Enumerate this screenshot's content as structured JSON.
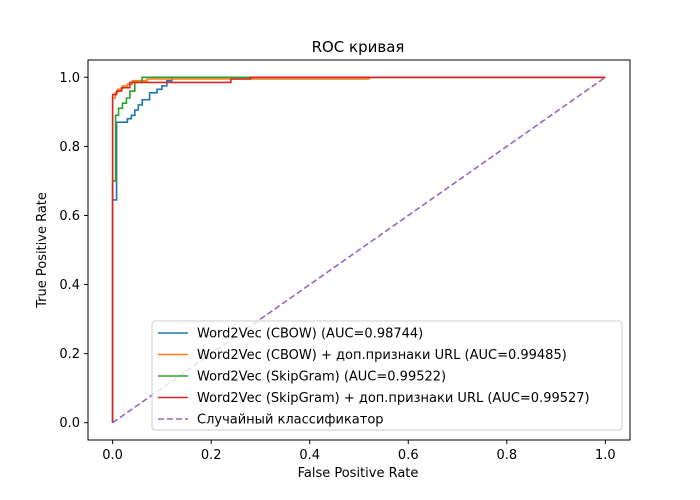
{
  "chart_data": {
    "type": "line",
    "title": "ROC кривая",
    "xlabel": "False Positive Rate",
    "ylabel": "True Positive Rate",
    "xlim": [
      -0.05,
      1.05
    ],
    "ylim": [
      -0.05,
      1.05
    ],
    "xticks": [
      0.0,
      0.2,
      0.4,
      0.6,
      0.8,
      1.0
    ],
    "yticks": [
      0.0,
      0.2,
      0.4,
      0.6,
      0.8,
      1.0
    ],
    "xtick_labels": [
      "0.0",
      "0.2",
      "0.4",
      "0.6",
      "0.8",
      "1.0"
    ],
    "ytick_labels": [
      "0.0",
      "0.2",
      "0.4",
      "0.6",
      "0.8",
      "1.0"
    ],
    "grid": false,
    "legend_position": "lower-right",
    "series": [
      {
        "name": "Word2Vec (CBOW) (AUC=0.98744)",
        "color": "#1f77b4",
        "dash": "solid",
        "points": [
          [
            0,
            0
          ],
          [
            0,
            0.645
          ],
          [
            0.008,
            0.645
          ],
          [
            0.008,
            0.87
          ],
          [
            0.03,
            0.87
          ],
          [
            0.03,
            0.88
          ],
          [
            0.038,
            0.88
          ],
          [
            0.038,
            0.89
          ],
          [
            0.045,
            0.89
          ],
          [
            0.045,
            0.905
          ],
          [
            0.052,
            0.905
          ],
          [
            0.052,
            0.92
          ],
          [
            0.06,
            0.92
          ],
          [
            0.06,
            0.935
          ],
          [
            0.075,
            0.935
          ],
          [
            0.075,
            0.955
          ],
          [
            0.09,
            0.955
          ],
          [
            0.09,
            0.965
          ],
          [
            0.1,
            0.965
          ],
          [
            0.1,
            0.975
          ],
          [
            0.11,
            0.975
          ],
          [
            0.11,
            0.99
          ],
          [
            0.12,
            0.99
          ],
          [
            0.12,
            1.0
          ],
          [
            1.0,
            1.0
          ]
        ]
      },
      {
        "name": "Word2Vec (CBOW) + доп.признаки URL (AUC=0.99485)",
        "color": "#ff7f0e",
        "dash": "solid",
        "points": [
          [
            0,
            0
          ],
          [
            0,
            0.94
          ],
          [
            0.005,
            0.94
          ],
          [
            0.005,
            0.955
          ],
          [
            0.01,
            0.955
          ],
          [
            0.01,
            0.965
          ],
          [
            0.02,
            0.965
          ],
          [
            0.02,
            0.975
          ],
          [
            0.03,
            0.975
          ],
          [
            0.03,
            0.98
          ],
          [
            0.04,
            0.98
          ],
          [
            0.04,
            0.99
          ],
          [
            0.07,
            0.99
          ],
          [
            0.07,
            0.995
          ],
          [
            0.52,
            0.995
          ],
          [
            0.52,
            1.0
          ],
          [
            1.0,
            1.0
          ]
        ]
      },
      {
        "name": "Word2Vec (SkipGram) (AUC=0.99522)",
        "color": "#2ca02c",
        "dash": "solid",
        "points": [
          [
            0,
            0
          ],
          [
            0,
            0.7
          ],
          [
            0.006,
            0.7
          ],
          [
            0.006,
            0.89
          ],
          [
            0.012,
            0.89
          ],
          [
            0.012,
            0.91
          ],
          [
            0.02,
            0.91
          ],
          [
            0.02,
            0.925
          ],
          [
            0.028,
            0.925
          ],
          [
            0.028,
            0.94
          ],
          [
            0.035,
            0.94
          ],
          [
            0.035,
            0.96
          ],
          [
            0.045,
            0.96
          ],
          [
            0.045,
            0.985
          ],
          [
            0.06,
            0.985
          ],
          [
            0.06,
            1.0
          ],
          [
            1.0,
            1.0
          ]
        ]
      },
      {
        "name": "Word2Vec (SkipGram) + доп.признаки URL (AUC=0.99527)",
        "color": "#d62728",
        "dash": "solid",
        "points": [
          [
            0,
            0
          ],
          [
            0,
            0.95
          ],
          [
            0.008,
            0.95
          ],
          [
            0.008,
            0.96
          ],
          [
            0.018,
            0.96
          ],
          [
            0.018,
            0.97
          ],
          [
            0.035,
            0.97
          ],
          [
            0.035,
            0.985
          ],
          [
            0.24,
            0.985
          ],
          [
            0.24,
            0.995
          ],
          [
            0.28,
            0.995
          ],
          [
            0.28,
            1.0
          ],
          [
            1.0,
            1.0
          ]
        ]
      },
      {
        "name": "Случайный классификатор",
        "color": "#9467bd",
        "dash": "dashed",
        "points": [
          [
            0,
            0
          ],
          [
            1,
            1
          ]
        ]
      }
    ]
  }
}
